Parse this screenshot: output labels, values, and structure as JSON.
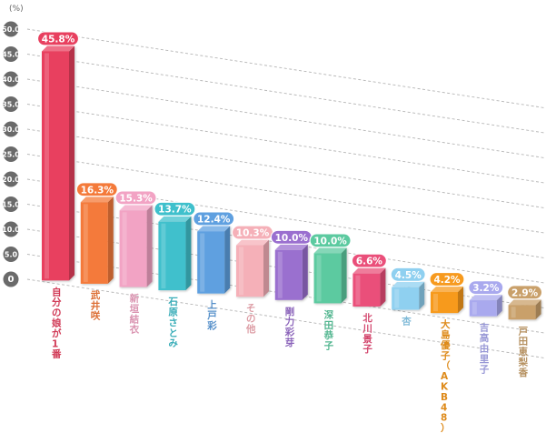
{
  "chart_data": {
    "type": "bar",
    "unit_label": "(%)",
    "y_ticks": [
      "0",
      "5.0",
      "10.0",
      "15.0",
      "20.0",
      "25.0",
      "30.0",
      "35.0",
      "40.0",
      "45.0",
      "50.0"
    ],
    "ylim": [
      0,
      50
    ],
    "grid": true,
    "categories": [
      "自分の娘が1番",
      "武井咲",
      "新垣結衣",
      "石原さとみ",
      "上戸彩",
      "その他",
      "剛力彩芽",
      "深田恭子",
      "北川景子",
      "杏",
      "大島優子（AKB48）",
      "吉高由里子",
      "戸田恵梨香"
    ],
    "values": [
      45.8,
      16.3,
      15.3,
      13.7,
      12.4,
      10.3,
      10.0,
      10.0,
      6.6,
      4.5,
      4.2,
      3.2,
      2.9
    ],
    "value_labels": [
      "45.8%",
      "16.3%",
      "15.3%",
      "13.7%",
      "12.4%",
      "10.3%",
      "10.0%",
      "10.0%",
      "6.6%",
      "4.5%",
      "4.2%",
      "3.2%",
      "2.9%"
    ],
    "colors": [
      "#e8405f",
      "#f47a3a",
      "#f2a3c4",
      "#3fc0cc",
      "#5fa0e0",
      "#f5b0b8",
      "#9a6fcf",
      "#5ccaa0",
      "#ea4f7a",
      "#8fd0f0",
      "#f79a1e",
      "#a9a9ee",
      "#c9a06a"
    ],
    "tick_color": "#6a6a6a"
  }
}
